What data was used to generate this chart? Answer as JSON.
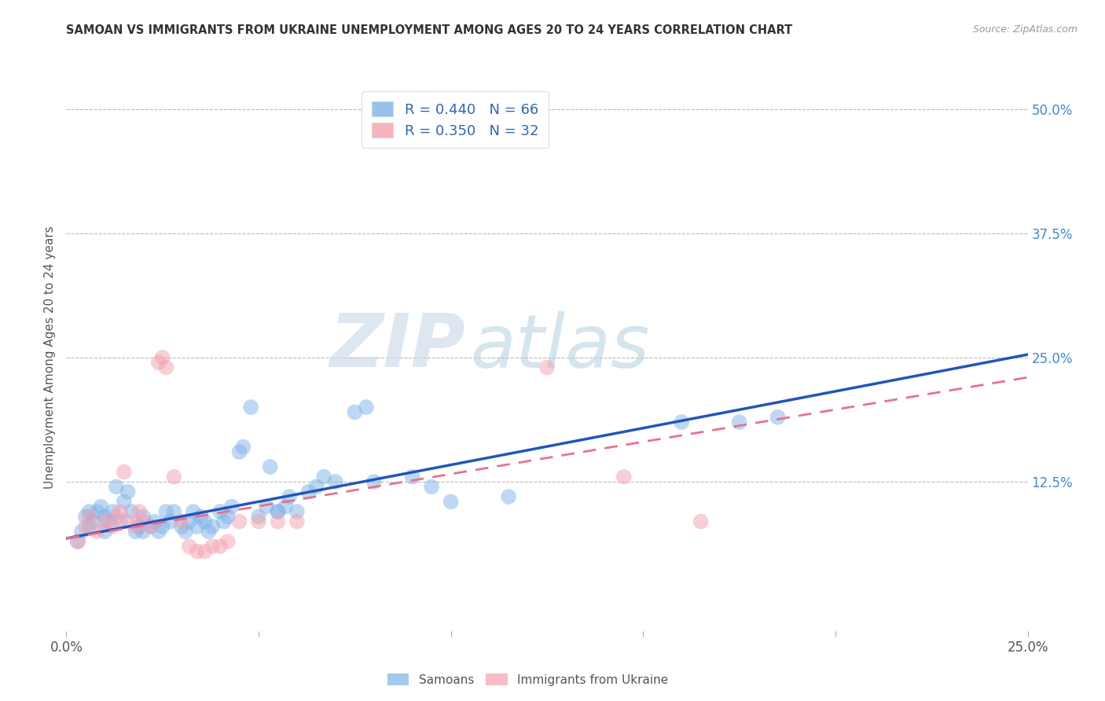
{
  "title": "SAMOAN VS IMMIGRANTS FROM UKRAINE UNEMPLOYMENT AMONG AGES 20 TO 24 YEARS CORRELATION CHART",
  "source": "Source: ZipAtlas.com",
  "ylabel": "Unemployment Among Ages 20 to 24 years",
  "xlim": [
    0.0,
    0.25
  ],
  "ylim": [
    -0.025,
    0.525
  ],
  "ytick_values": [
    0.125,
    0.25,
    0.375,
    0.5
  ],
  "ytick_labels": [
    "12.5%",
    "25.0%",
    "37.5%",
    "50.0%"
  ],
  "xtick_values": [
    0.0,
    0.25
  ],
  "xtick_labels": [
    "0.0%",
    "25.0%"
  ],
  "xtick_middle_values": [
    0.05,
    0.1,
    0.15,
    0.2
  ],
  "watermark_zip": "ZIP",
  "watermark_atlas": "atlas",
  "legend_label1": "R = 0.440   N = 66",
  "legend_label2": "R = 0.350   N = 32",
  "legend_bottom_label1": "Samoans",
  "legend_bottom_label2": "Immigrants from Ukraine",
  "blue_color": "#7EB3E8",
  "pink_color": "#F4A0B0",
  "blue_line_color": "#2255BB",
  "pink_line_color": "#E87090",
  "blue_scatter": [
    [
      0.003,
      0.065
    ],
    [
      0.004,
      0.075
    ],
    [
      0.005,
      0.09
    ],
    [
      0.006,
      0.095
    ],
    [
      0.006,
      0.08
    ],
    [
      0.007,
      0.085
    ],
    [
      0.008,
      0.095
    ],
    [
      0.009,
      0.1
    ],
    [
      0.01,
      0.075
    ],
    [
      0.01,
      0.09
    ],
    [
      0.011,
      0.085
    ],
    [
      0.012,
      0.095
    ],
    [
      0.013,
      0.12
    ],
    [
      0.014,
      0.085
    ],
    [
      0.015,
      0.105
    ],
    [
      0.016,
      0.115
    ],
    [
      0.017,
      0.095
    ],
    [
      0.018,
      0.075
    ],
    [
      0.019,
      0.08
    ],
    [
      0.02,
      0.075
    ],
    [
      0.02,
      0.09
    ],
    [
      0.022,
      0.08
    ],
    [
      0.023,
      0.085
    ],
    [
      0.024,
      0.075
    ],
    [
      0.025,
      0.08
    ],
    [
      0.026,
      0.095
    ],
    [
      0.027,
      0.085
    ],
    [
      0.028,
      0.095
    ],
    [
      0.03,
      0.08
    ],
    [
      0.031,
      0.075
    ],
    [
      0.032,
      0.085
    ],
    [
      0.033,
      0.095
    ],
    [
      0.034,
      0.08
    ],
    [
      0.035,
      0.09
    ],
    [
      0.036,
      0.085
    ],
    [
      0.037,
      0.075
    ],
    [
      0.038,
      0.08
    ],
    [
      0.04,
      0.095
    ],
    [
      0.041,
      0.085
    ],
    [
      0.042,
      0.09
    ],
    [
      0.043,
      0.1
    ],
    [
      0.045,
      0.155
    ],
    [
      0.046,
      0.16
    ],
    [
      0.048,
      0.2
    ],
    [
      0.05,
      0.09
    ],
    [
      0.052,
      0.1
    ],
    [
      0.053,
      0.14
    ],
    [
      0.055,
      0.095
    ],
    [
      0.057,
      0.1
    ],
    [
      0.058,
      0.11
    ],
    [
      0.06,
      0.095
    ],
    [
      0.063,
      0.115
    ],
    [
      0.065,
      0.12
    ],
    [
      0.067,
      0.13
    ],
    [
      0.07,
      0.125
    ],
    [
      0.075,
      0.195
    ],
    [
      0.078,
      0.2
    ],
    [
      0.08,
      0.125
    ],
    [
      0.09,
      0.13
    ],
    [
      0.095,
      0.12
    ],
    [
      0.1,
      0.105
    ],
    [
      0.115,
      0.11
    ],
    [
      0.16,
      0.185
    ],
    [
      0.175,
      0.185
    ],
    [
      0.185,
      0.19
    ],
    [
      0.055,
      0.095
    ]
  ],
  "pink_scatter": [
    [
      0.003,
      0.065
    ],
    [
      0.005,
      0.08
    ],
    [
      0.006,
      0.09
    ],
    [
      0.008,
      0.075
    ],
    [
      0.01,
      0.085
    ],
    [
      0.012,
      0.08
    ],
    [
      0.013,
      0.09
    ],
    [
      0.014,
      0.095
    ],
    [
      0.015,
      0.135
    ],
    [
      0.016,
      0.085
    ],
    [
      0.018,
      0.08
    ],
    [
      0.019,
      0.095
    ],
    [
      0.02,
      0.085
    ],
    [
      0.022,
      0.08
    ],
    [
      0.024,
      0.245
    ],
    [
      0.025,
      0.25
    ],
    [
      0.026,
      0.24
    ],
    [
      0.028,
      0.13
    ],
    [
      0.03,
      0.085
    ],
    [
      0.032,
      0.06
    ],
    [
      0.034,
      0.055
    ],
    [
      0.036,
      0.055
    ],
    [
      0.038,
      0.06
    ],
    [
      0.04,
      0.06
    ],
    [
      0.042,
      0.065
    ],
    [
      0.045,
      0.085
    ],
    [
      0.05,
      0.085
    ],
    [
      0.055,
      0.085
    ],
    [
      0.06,
      0.085
    ],
    [
      0.125,
      0.24
    ],
    [
      0.145,
      0.13
    ],
    [
      0.165,
      0.085
    ]
  ]
}
